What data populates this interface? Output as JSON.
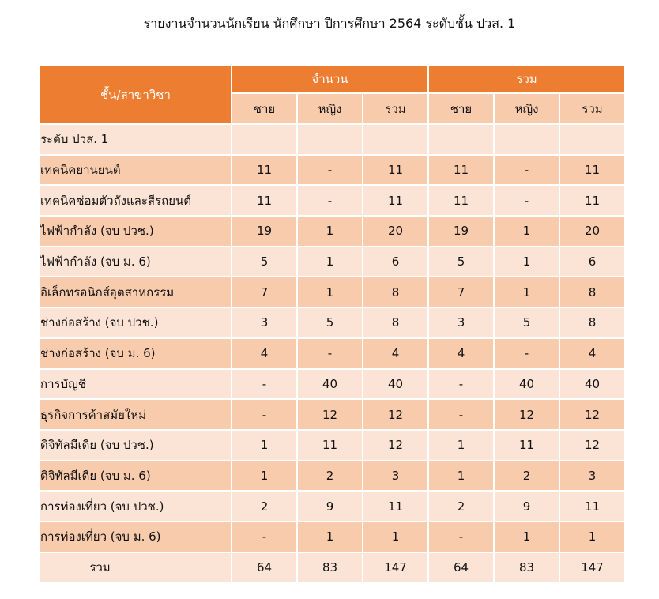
{
  "title": "รายงานจำนวนนักเรียน นักศึกษา ปีการศึกษา 2564 ระดับชั้น ปวส. 1",
  "table": {
    "header_main": "ชั้น/สาขาวิชา",
    "group_count": "จำนวน",
    "group_total": "รวม",
    "sub": [
      "ชาย",
      "หญิง",
      "รวม",
      "ชาย",
      "หญิง",
      "รวม"
    ],
    "rows": [
      {
        "label": "ระดับ ปวส. 1",
        "values": [
          "",
          "",
          "",
          "",
          "",
          ""
        ]
      },
      {
        "label": "เทคนิคยานยนต์",
        "values": [
          "11",
          "-",
          "11",
          "11",
          "-",
          "11"
        ]
      },
      {
        "label": "เทคนิคซ่อมตัวถังและสีรถยนต์",
        "values": [
          "11",
          "-",
          "11",
          "11",
          "-",
          "11"
        ]
      },
      {
        "label": "ไฟฟ้ากำลัง (จบ ปวช.)",
        "values": [
          "19",
          "1",
          "20",
          "19",
          "1",
          "20"
        ]
      },
      {
        "label": "ไฟฟ้ากำลัง (จบ ม. 6)",
        "values": [
          "5",
          "1",
          "6",
          "5",
          "1",
          "6"
        ]
      },
      {
        "label": "อิเล็กทรอนิกส์อุตสาหกรรม",
        "values": [
          "7",
          "1",
          "8",
          "7",
          "1",
          "8"
        ]
      },
      {
        "label": "ช่างก่อสร้าง (จบ ปวช.)",
        "values": [
          "3",
          "5",
          "8",
          "3",
          "5",
          "8"
        ]
      },
      {
        "label": "ช่างก่อสร้าง (จบ ม. 6)",
        "values": [
          "4",
          "-",
          "4",
          "4",
          "-",
          "4"
        ]
      },
      {
        "label": "การบัญชี",
        "values": [
          "-",
          "40",
          "40",
          "-",
          "40",
          "40"
        ]
      },
      {
        "label": "ธุรกิจการค้าสมัยใหม่",
        "values": [
          "-",
          "12",
          "12",
          "-",
          "12",
          "12"
        ]
      },
      {
        "label": "ดิจิทัลมีเดีย (จบ ปวช.)",
        "values": [
          "1",
          "11",
          "12",
          "1",
          "11",
          "12"
        ]
      },
      {
        "label": "ดิจิทัลมีเดีย (จบ ม. 6)",
        "values": [
          "1",
          "2",
          "3",
          "1",
          "2",
          "3"
        ]
      },
      {
        "label": "การท่องเที่ยว (จบ ปวช.)",
        "values": [
          "2",
          "9",
          "11",
          "2",
          "9",
          "11"
        ]
      },
      {
        "label": "การท่องเที่ยว (จบ ม. 6)",
        "values": [
          "-",
          "1",
          "1",
          "-",
          "1",
          "1"
        ]
      },
      {
        "label": "รวม",
        "values": [
          "64",
          "83",
          "147",
          "64",
          "83",
          "147"
        ]
      }
    ]
  }
}
